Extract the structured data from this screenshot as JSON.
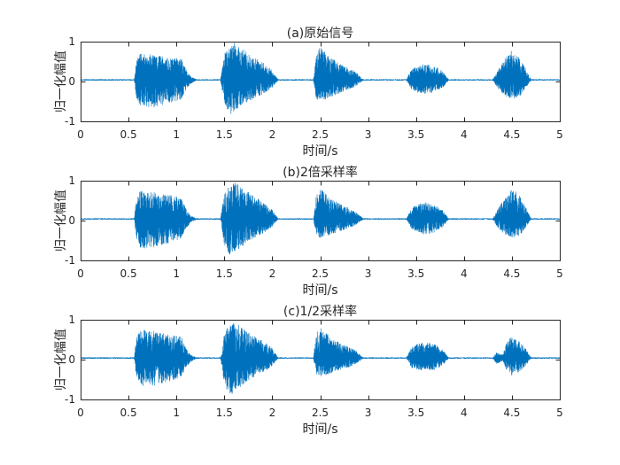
{
  "chart_data": [
    {
      "type": "line",
      "title": "(a)原始信号",
      "xlabel": "时间/s",
      "ylabel": "归一化幅值",
      "xlim": [
        0,
        5
      ],
      "ylim": [
        -1,
        1
      ],
      "xticks": [
        0,
        0.5,
        1,
        1.5,
        2,
        2.5,
        3,
        3.5,
        4,
        4.5,
        5
      ],
      "xtick_labels": [
        "0",
        "0.5",
        "1",
        "1.5",
        "2",
        "2.5",
        "3",
        "3.5",
        "4",
        "4.5",
        "5"
      ],
      "yticks": [
        -1,
        0,
        1
      ],
      "ytick_labels": [
        "-1",
        "0",
        "1"
      ],
      "grid": false,
      "color": "#0072BD",
      "axes_color": "#262626",
      "baseline": 0.04,
      "baseline_noise": 0.015,
      "bursts": [
        [
          [
            0.56,
            0.05,
            0.03
          ],
          [
            0.58,
            0.5,
            -0.4
          ],
          [
            0.62,
            0.7,
            -0.6
          ],
          [
            0.75,
            0.68,
            -0.66
          ],
          [
            0.9,
            0.62,
            -0.55
          ],
          [
            1.05,
            0.6,
            -0.45
          ],
          [
            1.1,
            0.3,
            -0.2
          ],
          [
            1.15,
            0.12,
            -0.05
          ],
          [
            1.21,
            0.05,
            0.03
          ]
        ],
        [
          [
            1.46,
            0.05,
            0.03
          ],
          [
            1.5,
            0.7,
            -0.55
          ],
          [
            1.56,
            0.88,
            -0.84
          ],
          [
            1.6,
            0.98,
            -0.75
          ],
          [
            1.7,
            0.8,
            -0.6
          ],
          [
            1.8,
            0.62,
            -0.45
          ],
          [
            1.92,
            0.45,
            -0.3
          ],
          [
            2.0,
            0.28,
            -0.15
          ],
          [
            2.06,
            0.05,
            0.03
          ]
        ],
        [
          [
            2.43,
            0.05,
            0.03
          ],
          [
            2.46,
            0.7,
            -0.45
          ],
          [
            2.5,
            0.87,
            -0.51
          ],
          [
            2.6,
            0.6,
            -0.4
          ],
          [
            2.72,
            0.42,
            -0.28
          ],
          [
            2.85,
            0.28,
            -0.15
          ],
          [
            2.95,
            0.05,
            0.03
          ]
        ],
        [
          [
            3.4,
            0.05,
            0.03
          ],
          [
            3.45,
            0.3,
            -0.2
          ],
          [
            3.52,
            0.4,
            -0.28
          ],
          [
            3.6,
            0.44,
            -0.31
          ],
          [
            3.7,
            0.38,
            -0.27
          ],
          [
            3.78,
            0.25,
            -0.15
          ],
          [
            3.84,
            0.05,
            0.03
          ]
        ],
        [
          [
            4.3,
            0.05,
            0.03
          ],
          [
            4.36,
            0.3,
            -0.2
          ],
          [
            4.42,
            0.55,
            -0.35
          ],
          [
            4.5,
            0.82,
            -0.44
          ],
          [
            4.58,
            0.6,
            -0.38
          ],
          [
            4.65,
            0.3,
            -0.15
          ],
          [
            4.7,
            0.05,
            0.03
          ]
        ]
      ]
    },
    {
      "type": "line",
      "title": "(b)2倍采样率",
      "xlabel": "时间/s",
      "ylabel": "归一化幅值",
      "xlim": [
        0,
        5
      ],
      "ylim": [
        -1,
        1
      ],
      "xticks": [
        0,
        0.5,
        1,
        1.5,
        2,
        2.5,
        3,
        3.5,
        4,
        4.5,
        5
      ],
      "xtick_labels": [
        "0",
        "0.5",
        "1",
        "1.5",
        "2",
        "2.5",
        "3",
        "3.5",
        "4",
        "4.5",
        "5"
      ],
      "yticks": [
        -1,
        0,
        1
      ],
      "ytick_labels": [
        "-1",
        "0",
        "1"
      ],
      "grid": false,
      "color": "#0072BD",
      "axes_color": "#262626",
      "baseline": 0.04,
      "baseline_noise": 0.015,
      "bursts": [
        [
          [
            0.56,
            0.05,
            0.03
          ],
          [
            0.58,
            0.55,
            -0.45
          ],
          [
            0.63,
            0.78,
            -0.7
          ],
          [
            0.75,
            0.72,
            -0.68
          ],
          [
            0.9,
            0.65,
            -0.58
          ],
          [
            1.05,
            0.6,
            -0.45
          ],
          [
            1.1,
            0.3,
            -0.2
          ],
          [
            1.15,
            0.12,
            -0.05
          ],
          [
            1.21,
            0.05,
            0.03
          ]
        ],
        [
          [
            1.46,
            0.05,
            0.03
          ],
          [
            1.5,
            0.72,
            -0.6
          ],
          [
            1.56,
            0.9,
            -0.89
          ],
          [
            1.6,
            0.98,
            -0.8
          ],
          [
            1.7,
            0.8,
            -0.62
          ],
          [
            1.8,
            0.62,
            -0.45
          ],
          [
            1.92,
            0.45,
            -0.3
          ],
          [
            2.0,
            0.28,
            -0.15
          ],
          [
            2.06,
            0.05,
            0.03
          ]
        ],
        [
          [
            2.43,
            0.05,
            0.03
          ],
          [
            2.46,
            0.65,
            -0.4
          ],
          [
            2.5,
            0.8,
            -0.44
          ],
          [
            2.6,
            0.58,
            -0.36
          ],
          [
            2.72,
            0.4,
            -0.26
          ],
          [
            2.85,
            0.26,
            -0.14
          ],
          [
            2.95,
            0.05,
            0.03
          ]
        ],
        [
          [
            3.4,
            0.05,
            0.03
          ],
          [
            3.45,
            0.3,
            -0.22
          ],
          [
            3.52,
            0.42,
            -0.3
          ],
          [
            3.6,
            0.46,
            -0.35
          ],
          [
            3.7,
            0.4,
            -0.3
          ],
          [
            3.78,
            0.25,
            -0.15
          ],
          [
            3.84,
            0.05,
            0.03
          ]
        ],
        [
          [
            4.3,
            0.05,
            0.03
          ],
          [
            4.36,
            0.3,
            -0.2
          ],
          [
            4.42,
            0.55,
            -0.35
          ],
          [
            4.5,
            0.84,
            -0.44
          ],
          [
            4.58,
            0.62,
            -0.38
          ],
          [
            4.65,
            0.3,
            -0.15
          ],
          [
            4.7,
            0.05,
            0.03
          ]
        ]
      ]
    },
    {
      "type": "line",
      "title": "(c)1/2采样率",
      "xlabel": "时间/s",
      "ylabel": "归一化幅值",
      "xlim": [
        0,
        5
      ],
      "ylim": [
        -1,
        1
      ],
      "xticks": [
        0,
        0.5,
        1,
        1.5,
        2,
        2.5,
        3,
        3.5,
        4,
        4.5,
        5
      ],
      "xtick_labels": [
        "0",
        "0.5",
        "1",
        "1.5",
        "2",
        "2.5",
        "3",
        "3.5",
        "4",
        "4.5",
        "5"
      ],
      "yticks": [
        -1,
        0,
        1
      ],
      "ytick_labels": [
        "-1",
        "0",
        "1"
      ],
      "grid": false,
      "color": "#0072BD",
      "axes_color": "#262626",
      "baseline": 0.04,
      "baseline_noise": 0.015,
      "bursts": [
        [
          [
            0.56,
            0.05,
            0.03
          ],
          [
            0.58,
            0.55,
            -0.45
          ],
          [
            0.63,
            0.76,
            -0.69
          ],
          [
            0.75,
            0.72,
            -0.66
          ],
          [
            0.9,
            0.64,
            -0.56
          ],
          [
            1.05,
            0.58,
            -0.44
          ],
          [
            1.1,
            0.3,
            -0.2
          ],
          [
            1.15,
            0.12,
            -0.05
          ],
          [
            1.21,
            0.05,
            0.03
          ]
        ],
        [
          [
            1.46,
            0.05,
            0.03
          ],
          [
            1.5,
            0.7,
            -0.6
          ],
          [
            1.56,
            0.88,
            -0.96
          ],
          [
            1.6,
            0.96,
            -0.8
          ],
          [
            1.7,
            0.78,
            -0.62
          ],
          [
            1.8,
            0.6,
            -0.45
          ],
          [
            1.92,
            0.44,
            -0.3
          ],
          [
            2.0,
            0.28,
            -0.15
          ],
          [
            2.06,
            0.05,
            0.03
          ]
        ],
        [
          [
            2.43,
            0.05,
            0.03
          ],
          [
            2.46,
            0.68,
            -0.4
          ],
          [
            2.5,
            0.84,
            -0.42
          ],
          [
            2.6,
            0.58,
            -0.36
          ],
          [
            2.72,
            0.4,
            -0.26
          ],
          [
            2.85,
            0.26,
            -0.14
          ],
          [
            2.95,
            0.05,
            0.03
          ]
        ],
        [
          [
            3.4,
            0.05,
            0.03
          ],
          [
            3.45,
            0.3,
            -0.2
          ],
          [
            3.52,
            0.4,
            -0.25
          ],
          [
            3.6,
            0.44,
            -0.27
          ],
          [
            3.7,
            0.38,
            -0.25
          ],
          [
            3.78,
            0.24,
            -0.14
          ],
          [
            3.84,
            0.05,
            0.03
          ]
        ],
        [
          [
            4.3,
            0.05,
            0.03
          ],
          [
            4.34,
            0.18,
            -0.1
          ],
          [
            4.4,
            0.12,
            -0.05
          ],
          [
            4.45,
            0.45,
            -0.3
          ],
          [
            4.5,
            0.58,
            -0.4
          ],
          [
            4.58,
            0.45,
            -0.32
          ],
          [
            4.65,
            0.25,
            -0.12
          ],
          [
            4.7,
            0.05,
            0.03
          ]
        ]
      ]
    }
  ]
}
